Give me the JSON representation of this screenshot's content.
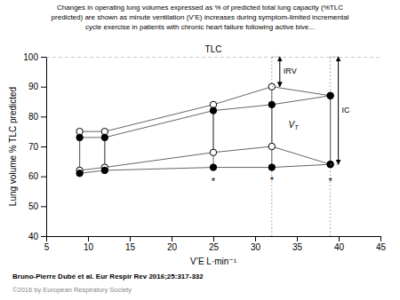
{
  "chart_data": {
    "type": "line",
    "title": [
      "Changes in operating lung volumes expressed as % of predicted total lung capacity (%TLC",
      "predicted) are shown as minute ventilation (V’E) increases during symptom-limited incremental",
      "cycle exercise in patients with chronic heart failure following active bive..."
    ],
    "xlabel": "V’E L·min⁻¹",
    "ylabel": "Lung volume % TLC predicted",
    "xlim": [
      5,
      45
    ],
    "ylim": [
      40,
      100
    ],
    "xticks": [
      5,
      10,
      15,
      20,
      25,
      30,
      35,
      40,
      45
    ],
    "yticks": [
      40,
      50,
      60,
      70,
      80,
      90,
      100
    ],
    "grid": false,
    "x": [
      9,
      12,
      25,
      32,
      39
    ],
    "series": [
      {
        "color": "#666666",
        "marker": "open-circle",
        "values": [
          75,
          75,
          84,
          90,
          87
        ]
      },
      {
        "color": "#666666",
        "marker": "circle",
        "values": [
          73,
          73,
          82,
          84,
          87
        ]
      },
      {
        "color": "#666666",
        "marker": "open-circle",
        "values": [
          62,
          63,
          68,
          70,
          64
        ]
      },
      {
        "color": "#666666",
        "marker": "circle",
        "values": [
          61,
          62,
          63,
          63,
          64
        ]
      }
    ],
    "annotations": [
      {
        "text": "TLC",
        "y": 100
      },
      {
        "text": "IRV",
        "x": 32,
        "y": [
          90,
          100
        ]
      },
      {
        "text": "V",
        "subscript": "T",
        "x": 34,
        "y": 77
      },
      {
        "text": "IC",
        "x": 39,
        "y": [
          64,
          100
        ]
      },
      {
        "text": "*",
        "x": 25,
        "y": 59.5
      },
      {
        "text": "*",
        "x": 32,
        "y": 60.0
      },
      {
        "text": "*",
        "x": 39,
        "y": 59.5
      }
    ],
    "footnotes": [
      "Bruno-Pierre Dubé et al. Eur Respir Rev 2016;25:317-332",
      "©2016 by European Respiratory Society"
    ]
  }
}
